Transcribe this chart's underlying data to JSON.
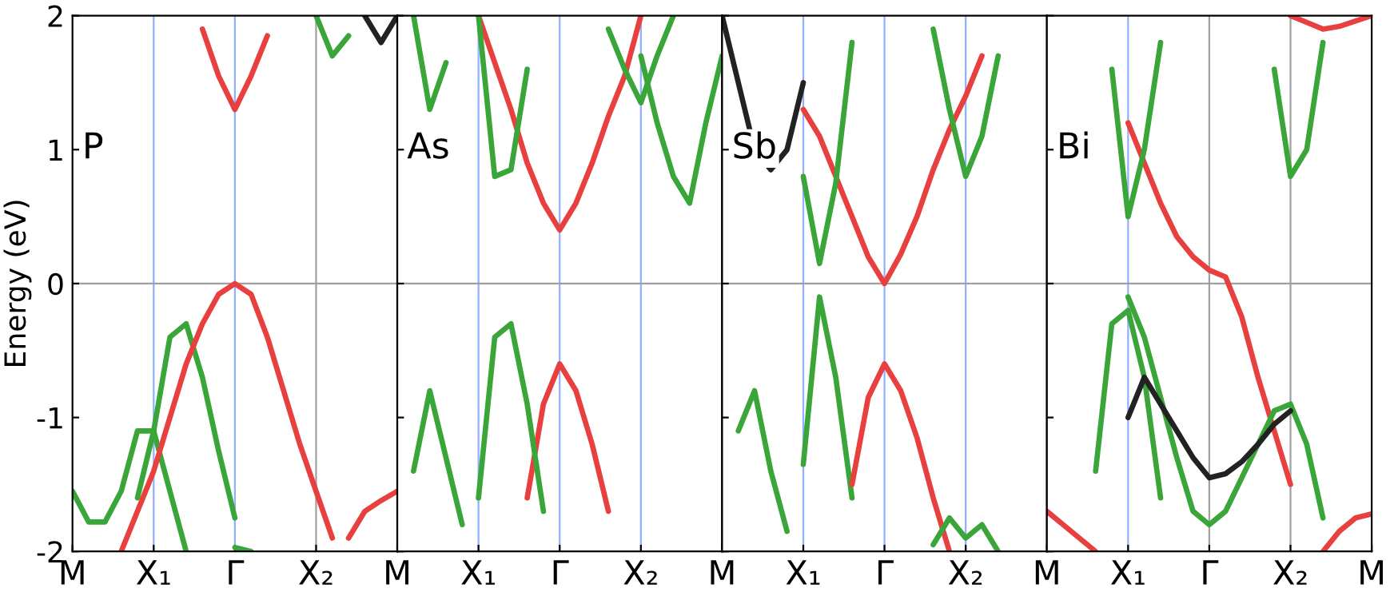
{
  "chart_data": [
    {
      "type": "line",
      "ylabel": "Energy (eV)",
      "annotations": [
        "P"
      ],
      "ylim": [
        -2,
        2
      ],
      "categories": [
        "M",
        null,
        null,
        null,
        null,
        "X₁",
        null,
        null,
        null,
        null,
        "Γ",
        null,
        null,
        null,
        null,
        "X₂",
        null,
        null,
        null,
        null,
        "M"
      ],
      "yticks": [
        -2,
        -1,
        0,
        1,
        2
      ],
      "ref_lines": [
        {
          "axis": "x",
          "value": "X₁",
          "color": "#8fb0ff"
        },
        {
          "axis": "x",
          "value": "Γ",
          "color": "#8fb0ff"
        },
        {
          "axis": "x",
          "value": "X₂",
          "color": "#a0a0a0"
        },
        {
          "axis": "y",
          "value": 0,
          "color": "#a0a0a0"
        }
      ],
      "series": [
        {
          "color": "#3aa63a",
          "values": [
            -1.55,
            -1.78,
            -1.78,
            -1.55,
            -1.1,
            -1.1,
            -1.55,
            -2.0,
            null,
            null,
            null,
            null,
            null,
            null,
            null,
            null,
            null,
            null,
            null,
            null,
            null
          ]
        },
        {
          "color": "#3aa63a",
          "values": [
            null,
            null,
            null,
            null,
            -1.6,
            -1.1,
            -0.4,
            -0.3,
            -0.7,
            -1.25,
            -1.75,
            null,
            null,
            null,
            null,
            null,
            null,
            null,
            null,
            null,
            null
          ]
        },
        {
          "color": "#e8403f",
          "values": [
            null,
            null,
            null,
            -2.0,
            -1.7,
            -1.4,
            -1.0,
            -0.6,
            -0.3,
            -0.08,
            0.0,
            -0.08,
            -0.4,
            -0.8,
            -1.2,
            -1.55,
            -1.9,
            null,
            null,
            null,
            null
          ]
        },
        {
          "color": "#e8403f",
          "values": [
            null,
            null,
            null,
            null,
            null,
            null,
            null,
            null,
            null,
            null,
            null,
            null,
            null,
            null,
            null,
            null,
            null,
            -1.9,
            -1.7,
            -1.62,
            -1.55
          ]
        },
        {
          "color": "#3aa63a",
          "values": [
            null,
            null,
            null,
            null,
            null,
            null,
            null,
            null,
            null,
            null,
            -1.97,
            -2.0,
            null,
            null,
            null,
            null,
            null,
            null,
            null,
            null,
            null
          ]
        },
        {
          "color": "#e8403f",
          "values": [
            null,
            null,
            null,
            null,
            null,
            null,
            null,
            null,
            1.9,
            1.55,
            1.3,
            1.55,
            1.85,
            null,
            null,
            null,
            null,
            null,
            null,
            null,
            null
          ]
        },
        {
          "color": "#3aa63a",
          "values": [
            null,
            null,
            null,
            null,
            null,
            null,
            null,
            null,
            null,
            null,
            null,
            null,
            null,
            null,
            null,
            2.0,
            1.7,
            1.85,
            null,
            null,
            null
          ]
        },
        {
          "color": "#222222",
          "values": [
            null,
            null,
            null,
            null,
            null,
            null,
            null,
            null,
            null,
            null,
            null,
            null,
            null,
            null,
            null,
            null,
            null,
            null,
            2.0,
            1.8,
            2.0
          ]
        }
      ]
    },
    {
      "type": "line",
      "annotations": [
        "As"
      ],
      "ylim": [
        -2,
        2
      ],
      "tick_labels": "x",
      "categories": [
        null,
        null,
        null,
        null,
        null,
        "X₁",
        null,
        null,
        null,
        null,
        "Γ",
        null,
        null,
        null,
        null,
        "X₂",
        null,
        null,
        null,
        null,
        "M"
      ],
      "yticks": [
        -2,
        -1,
        0,
        1,
        2
      ],
      "ref_lines": [
        {
          "axis": "x",
          "value": "X₁",
          "color": "#8fb0ff"
        },
        {
          "axis": "x",
          "value": "Γ",
          "color": "#8fb0ff"
        },
        {
          "axis": "x",
          "value": "X₂",
          "color": "#8fb0ff"
        },
        {
          "axis": "y",
          "value": 0,
          "color": "#a0a0a0"
        }
      ],
      "series": [
        {
          "color": "#e8403f",
          "values": [
            null,
            null,
            null,
            null,
            null,
            null,
            null,
            null,
            -1.6,
            -0.9,
            -0.6,
            -0.8,
            -1.2,
            -1.7,
            null,
            null,
            null,
            null,
            null,
            null,
            null
          ]
        },
        {
          "color": "#3aa63a",
          "values": [
            null,
            null,
            null,
            null,
            null,
            -1.6,
            -0.4,
            -0.3,
            -0.9,
            -1.7,
            null,
            null,
            null,
            null,
            null,
            null,
            null,
            null,
            null,
            null,
            null
          ]
        },
        {
          "color": "#3aa63a",
          "values": [
            null,
            -1.4,
            -0.8,
            -1.3,
            -1.8,
            null,
            null,
            null,
            null,
            null,
            null,
            null,
            null,
            null,
            null,
            null,
            null,
            null,
            null,
            null,
            null
          ]
        },
        {
          "color": "#e8403f",
          "values": [
            null,
            null,
            null,
            null,
            null,
            2.0,
            1.65,
            1.3,
            0.9,
            0.6,
            0.4,
            0.6,
            0.9,
            1.25,
            1.55,
            2.0,
            null,
            null,
            null,
            null,
            null
          ]
        },
        {
          "color": "#3aa63a",
          "values": [
            null,
            null,
            null,
            null,
            null,
            2.0,
            0.8,
            0.85,
            1.6,
            null,
            null,
            null,
            null,
            null,
            null,
            null,
            null,
            null,
            null,
            null,
            null
          ]
        },
        {
          "color": "#3aa63a",
          "values": [
            null,
            2.0,
            1.3,
            1.65,
            null,
            null,
            null,
            null,
            null,
            null,
            null,
            null,
            null,
            null,
            null,
            null,
            null,
            null,
            null,
            null,
            null
          ]
        },
        {
          "color": "#3aa63a",
          "values": [
            null,
            null,
            null,
            null,
            null,
            null,
            null,
            null,
            null,
            null,
            null,
            null,
            null,
            1.9,
            1.6,
            1.35,
            1.7,
            2.0,
            null,
            null,
            null
          ]
        },
        {
          "color": "#3aa63a",
          "values": [
            null,
            null,
            null,
            null,
            null,
            null,
            null,
            null,
            null,
            null,
            null,
            null,
            null,
            null,
            null,
            1.7,
            1.2,
            0.8,
            0.6,
            1.2,
            1.7
          ]
        }
      ]
    },
    {
      "type": "line",
      "annotations": [
        "Sb"
      ],
      "ylim": [
        -2,
        2
      ],
      "tick_labels": "x",
      "categories": [
        null,
        null,
        null,
        null,
        null,
        "X₁",
        null,
        null,
        null,
        null,
        "Γ",
        null,
        null,
        null,
        null,
        "X₂",
        null,
        null,
        null,
        null,
        "M"
      ],
      "yticks": [
        -2,
        -1,
        0,
        1,
        2
      ],
      "ref_lines": [
        {
          "axis": "x",
          "value": "X₁",
          "color": "#8fb0ff"
        },
        {
          "axis": "x",
          "value": "Γ",
          "color": "#8fb0ff"
        },
        {
          "axis": "x",
          "value": "X₂",
          "color": "#8fb0ff"
        },
        {
          "axis": "y",
          "value": 0,
          "color": "#a0a0a0"
        }
      ],
      "series": [
        {
          "color": "#e8403f",
          "values": [
            null,
            null,
            null,
            null,
            null,
            1.3,
            1.1,
            0.8,
            0.5,
            0.2,
            0.0,
            0.22,
            0.5,
            0.85,
            1.15,
            1.4,
            1.7,
            null,
            null,
            null,
            null
          ]
        },
        {
          "color": "#3aa63a",
          "values": [
            null,
            null,
            null,
            null,
            null,
            0.8,
            0.15,
            0.75,
            1.8,
            null,
            null,
            null,
            null,
            null,
            null,
            null,
            null,
            null,
            null,
            null,
            null
          ]
        },
        {
          "color": "#3aa63a",
          "values": [
            null,
            null,
            null,
            null,
            null,
            -1.35,
            -0.1,
            -0.7,
            -1.6,
            null,
            null,
            null,
            null,
            null,
            null,
            null,
            null,
            null,
            null,
            null,
            null
          ]
        },
        {
          "color": "#e8403f",
          "values": [
            null,
            null,
            null,
            null,
            null,
            null,
            null,
            null,
            -1.5,
            -0.85,
            -0.6,
            -0.8,
            -1.15,
            -1.6,
            -2.0,
            null,
            null,
            null,
            null,
            null,
            null
          ]
        },
        {
          "color": "#3aa63a",
          "values": [
            null,
            -1.1,
            -0.8,
            -1.4,
            -1.85,
            null,
            null,
            null,
            null,
            null,
            null,
            null,
            null,
            null,
            null,
            null,
            null,
            null,
            null,
            null,
            null
          ]
        },
        {
          "color": "#3aa63a",
          "values": [
            null,
            null,
            null,
            null,
            null,
            null,
            null,
            null,
            null,
            null,
            null,
            null,
            null,
            1.9,
            1.3,
            0.8,
            1.1,
            1.7,
            null,
            null,
            null
          ]
        },
        {
          "color": "#3aa63a",
          "values": [
            null,
            null,
            null,
            null,
            null,
            null,
            null,
            null,
            null,
            null,
            null,
            null,
            null,
            -1.95,
            -1.75,
            -1.9,
            -1.8,
            -2.0,
            null,
            null,
            null
          ]
        },
        {
          "color": "#222222",
          "values": [
            2.0,
            1.5,
            1.0,
            0.85,
            1.0,
            1.5,
            null,
            null,
            null,
            null,
            null,
            null,
            null,
            null,
            null,
            null,
            null,
            null,
            null,
            null,
            null
          ]
        }
      ]
    },
    {
      "type": "line",
      "annotations": [
        "Bi"
      ],
      "ylim": [
        -2,
        2
      ],
      "tick_labels": "x",
      "categories": [
        null,
        null,
        null,
        null,
        null,
        "X₁",
        null,
        null,
        null,
        null,
        "Γ",
        null,
        null,
        null,
        null,
        "X₂",
        null,
        null,
        null,
        null,
        "M"
      ],
      "yticks": [
        -2,
        -1,
        0,
        1,
        2
      ],
      "ref_lines": [
        {
          "axis": "x",
          "value": "X₁",
          "color": "#8fb0ff"
        },
        {
          "axis": "x",
          "value": "Γ",
          "color": "#a0a0a0"
        },
        {
          "axis": "x",
          "value": "X₂",
          "color": "#a0a0a0"
        },
        {
          "axis": "y",
          "value": 0,
          "color": "#a0a0a0"
        }
      ],
      "series": [
        {
          "color": "#e8403f",
          "values": [
            -1.7,
            -1.8,
            -1.9,
            -2.0,
            null,
            null,
            null,
            null,
            null,
            null,
            null,
            null,
            null,
            null,
            null,
            null,
            null,
            null,
            null,
            null,
            null
          ]
        },
        {
          "color": "#e8403f",
          "values": [
            null,
            null,
            null,
            null,
            null,
            null,
            null,
            null,
            null,
            null,
            null,
            null,
            null,
            null,
            null,
            null,
            null,
            -2.0,
            -1.85,
            -1.75,
            -1.72
          ]
        },
        {
          "color": "#e8403f",
          "values": [
            null,
            null,
            null,
            null,
            null,
            1.2,
            0.9,
            0.6,
            0.35,
            0.2,
            0.1,
            0.05,
            -0.25,
            -0.7,
            -1.1,
            -1.5,
            null,
            null,
            null,
            null,
            null
          ]
        },
        {
          "color": "#e8403f",
          "values": [
            null,
            null,
            null,
            null,
            null,
            null,
            null,
            null,
            null,
            null,
            null,
            null,
            null,
            null,
            null,
            2.0,
            1.95,
            1.9,
            1.92,
            1.96,
            2.0
          ]
        },
        {
          "color": "#3aa63a",
          "values": [
            null,
            null,
            null,
            null,
            null,
            -0.1,
            -0.4,
            -0.85,
            -1.3,
            -1.7,
            -1.8,
            -1.7,
            -1.45,
            -1.2,
            -0.95,
            -0.9,
            -1.2,
            -1.75,
            null,
            null,
            null
          ]
        },
        {
          "color": "#3aa63a",
          "values": [
            null,
            null,
            null,
            -1.4,
            -0.3,
            -0.2,
            -0.7,
            -1.6,
            null,
            null,
            null,
            null,
            null,
            null,
            null,
            null,
            null,
            null,
            null,
            null,
            null
          ]
        },
        {
          "color": "#222222",
          "values": [
            null,
            null,
            null,
            null,
            null,
            -1.0,
            -0.7,
            -0.9,
            -1.1,
            -1.3,
            -1.45,
            -1.42,
            -1.33,
            -1.2,
            -1.05,
            -0.95,
            null,
            null,
            null,
            null,
            null
          ]
        },
        {
          "color": "#3aa63a",
          "values": [
            null,
            null,
            null,
            null,
            1.6,
            0.5,
            1.0,
            1.8,
            null,
            null,
            null,
            null,
            null,
            null,
            null,
            null,
            null,
            null,
            null,
            null,
            null
          ]
        },
        {
          "color": "#3aa63a",
          "values": [
            null,
            null,
            null,
            null,
            null,
            null,
            null,
            null,
            null,
            null,
            null,
            null,
            null,
            null,
            1.6,
            0.8,
            1.0,
            1.8,
            null,
            null,
            null
          ]
        }
      ]
    }
  ]
}
